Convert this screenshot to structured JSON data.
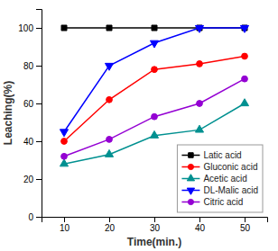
{
  "chart_data": {
    "type": "line",
    "xlabel": "Time(min.)",
    "ylabel": "Leaching(%)",
    "x": [
      10,
      20,
      30,
      40,
      50
    ],
    "series": [
      {
        "name": "Latic acid",
        "color": "#000000",
        "marker": "square",
        "line_style": "solid",
        "values": [
          100,
          100,
          100,
          100,
          100
        ]
      },
      {
        "name": "Gluconic acid",
        "color": "#ff0000",
        "marker": "circle",
        "line_style": "solid",
        "values": [
          40,
          62,
          78,
          81,
          85
        ]
      },
      {
        "name": "Acetic acid",
        "color": "#009090",
        "marker": "triangle-up",
        "line_style": "solid",
        "values": [
          28,
          33,
          43,
          46,
          60
        ]
      },
      {
        "name": "DL-Malic acid",
        "color": "#0000ff",
        "marker": "triangle-down",
        "line_style": "solid",
        "values": [
          45,
          80,
          92,
          100,
          100
        ]
      },
      {
        "name": "Citric acid",
        "color": "#9400d3",
        "marker": "circle",
        "line_style": "solid",
        "values": [
          32,
          41,
          53,
          60,
          73
        ]
      }
    ],
    "xlim": [
      5,
      55
    ],
    "ylim": [
      0,
      110
    ],
    "xticks": [
      10,
      20,
      30,
      40,
      50
    ],
    "yticks": [
      0,
      20,
      40,
      60,
      80,
      100
    ],
    "legend": "lower right",
    "grid": false
  }
}
